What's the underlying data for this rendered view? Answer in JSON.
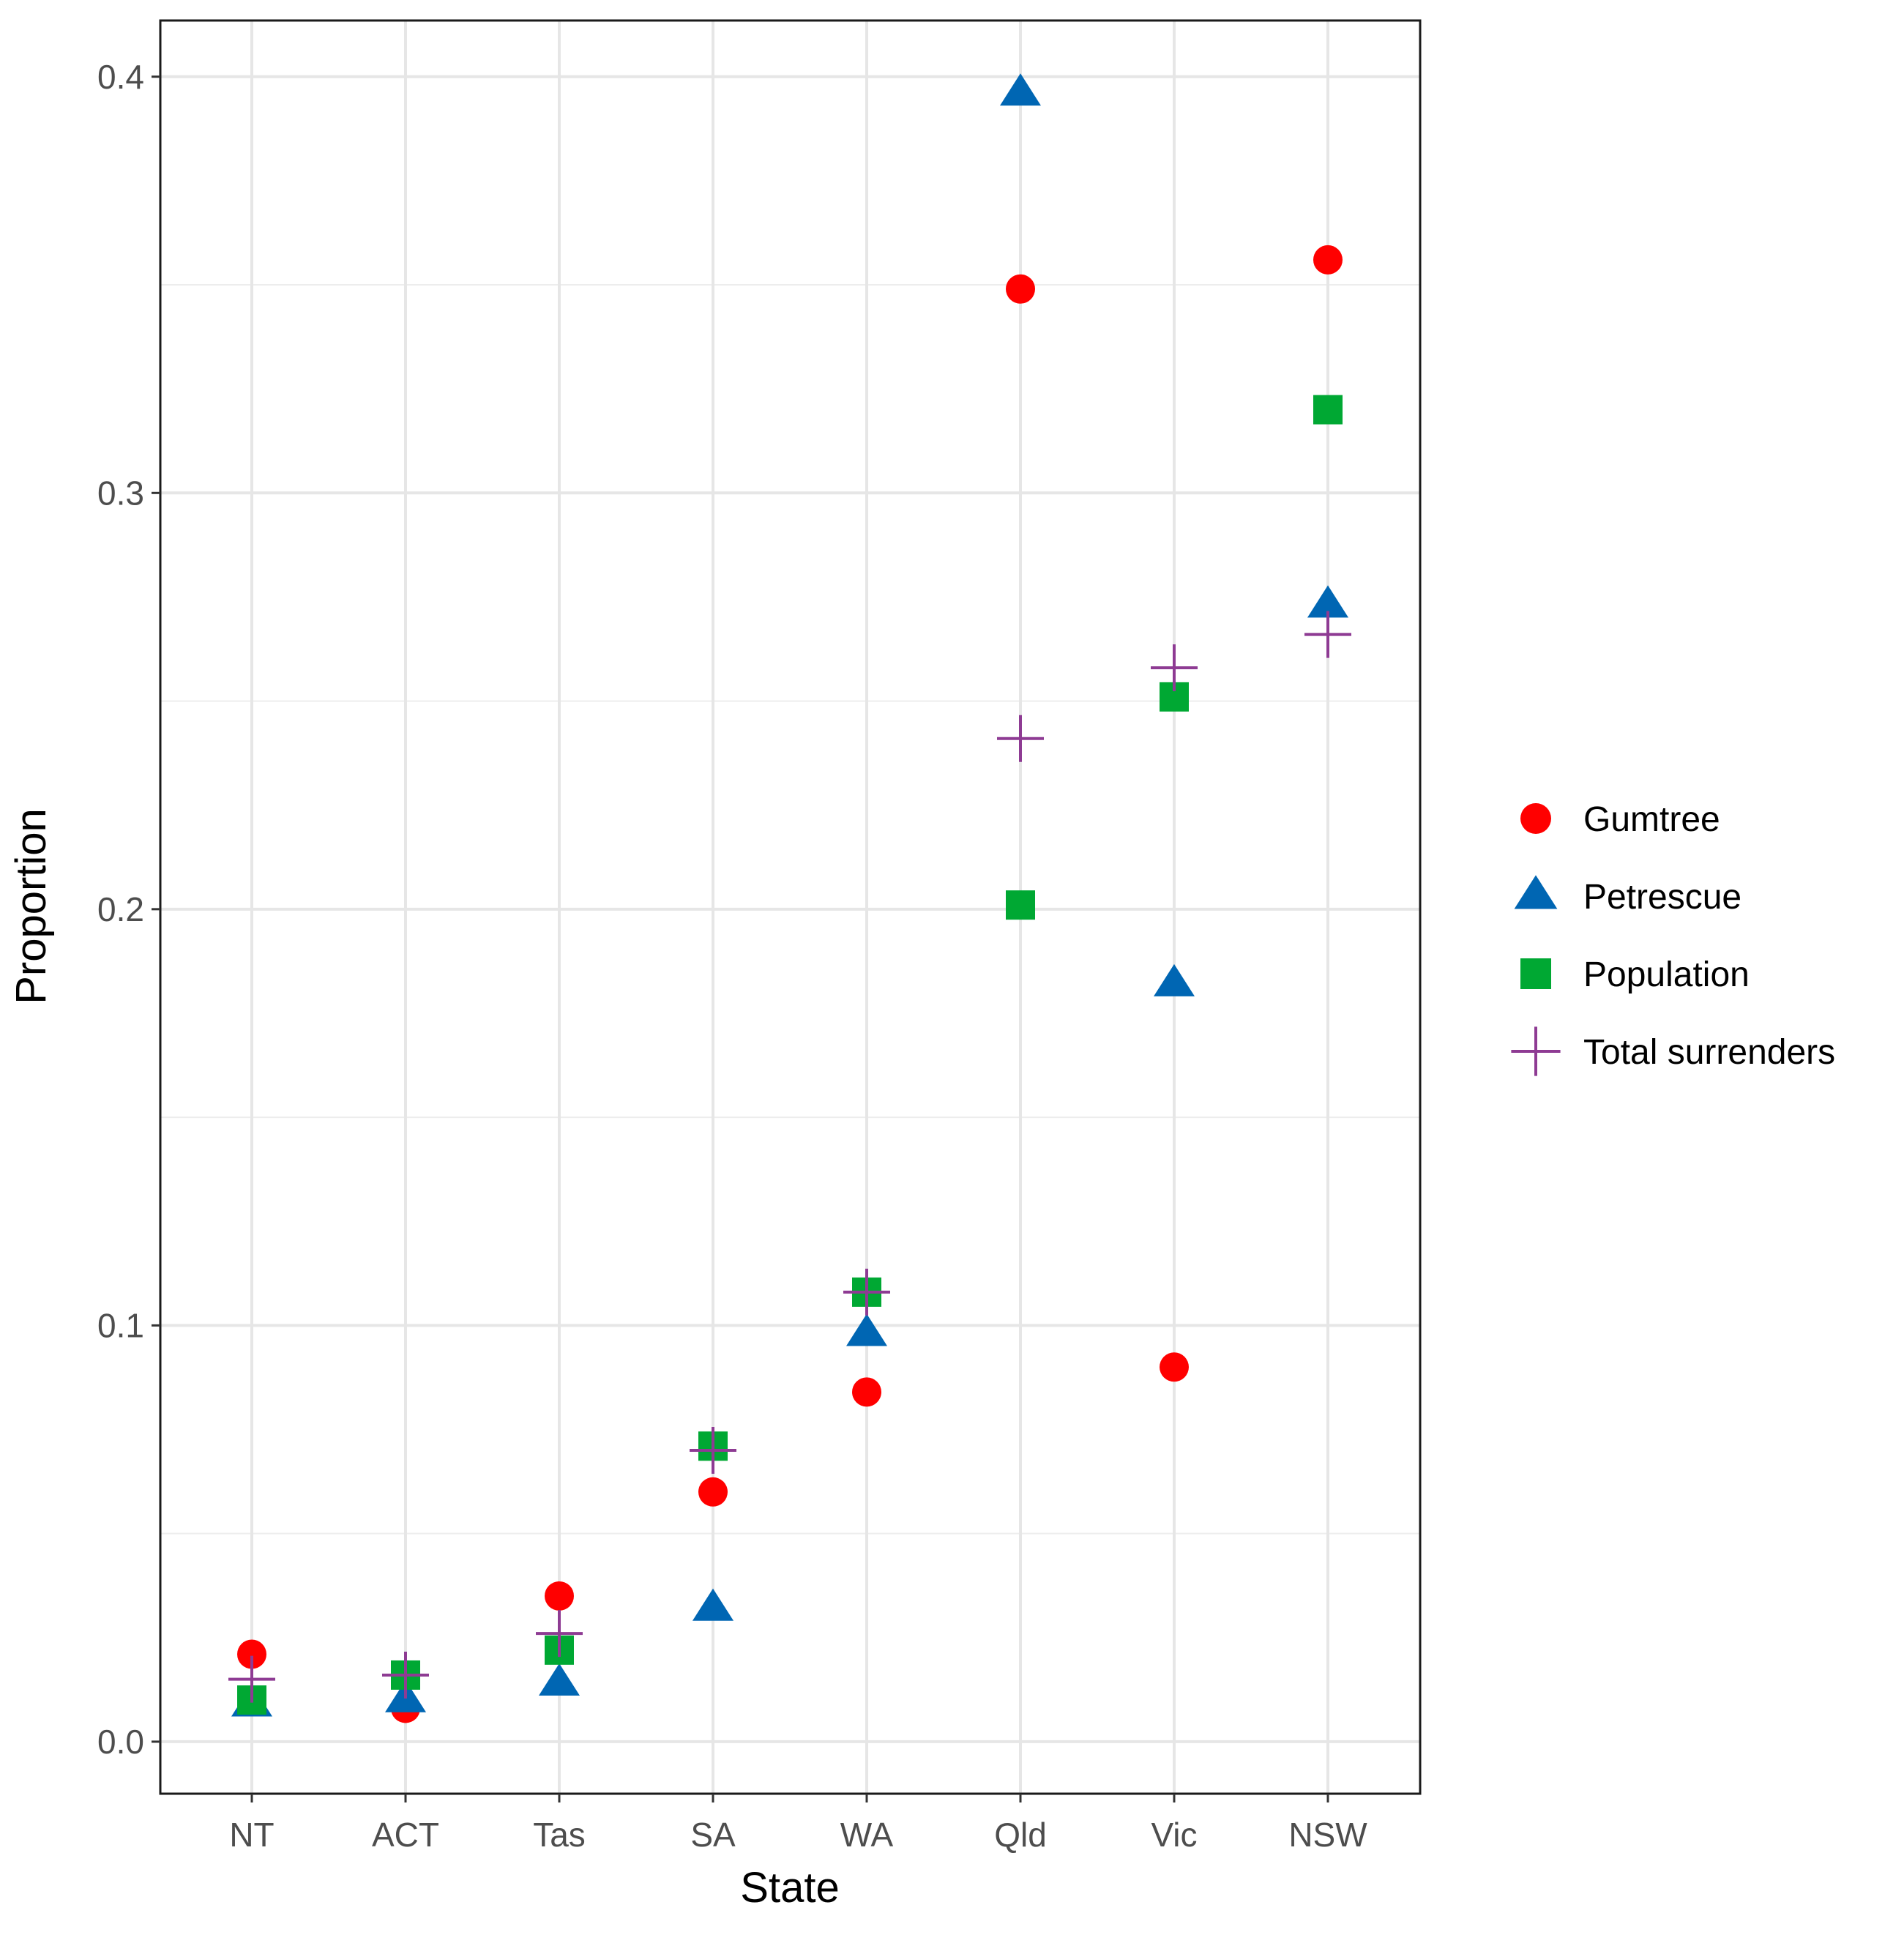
{
  "chart_data": {
    "type": "scatter",
    "title": "",
    "xlabel": "State",
    "ylabel": "Proportion",
    "categories": [
      "NT",
      "ACT",
      "Tas",
      "SA",
      "WA",
      "Qld",
      "Vic",
      "NSW"
    ],
    "ylim": [
      -0.0125,
      0.4135
    ],
    "yticks": [
      0.0,
      0.1,
      0.2,
      0.3,
      0.4
    ],
    "ytick_labels": [
      "0.0",
      "0.1",
      "0.2",
      "0.3",
      "0.4"
    ],
    "grid": true,
    "legend_position": "right",
    "series": [
      {
        "name": "Gumtree",
        "marker": "circle",
        "color": "#ff0000",
        "values": [
          0.021,
          0.008,
          0.035,
          0.06,
          0.084,
          0.349,
          0.09,
          0.356
        ]
      },
      {
        "name": "Petrescue",
        "marker": "triangle",
        "color": "#0066b3",
        "values": [
          0.009,
          0.01,
          0.014,
          0.032,
          0.098,
          0.396,
          0.182,
          0.273
        ]
      },
      {
        "name": "Population",
        "marker": "square",
        "color": "#00a833",
        "values": [
          0.01,
          0.016,
          0.022,
          0.071,
          0.108,
          0.201,
          0.251,
          0.32
        ]
      },
      {
        "name": "Total surrenders",
        "marker": "plus",
        "color": "#8e3b93",
        "values": [
          0.015,
          0.016,
          0.026,
          0.07,
          0.108,
          0.241,
          0.258,
          0.266
        ]
      }
    ]
  }
}
